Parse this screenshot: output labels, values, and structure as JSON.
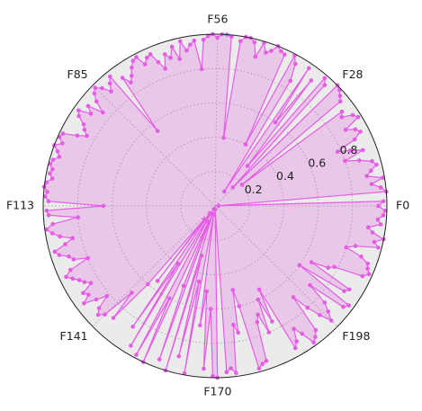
{
  "chart_data": {
    "type": "radar",
    "categories": [
      "F0",
      null,
      null,
      null,
      null,
      null,
      null,
      null,
      null,
      null,
      null,
      null,
      null,
      null,
      null,
      null,
      null,
      null,
      null,
      null,
      null,
      null,
      null,
      null,
      null,
      null,
      null,
      null,
      "F28",
      null,
      null,
      null,
      null,
      null,
      null,
      null,
      null,
      null,
      null,
      null,
      null,
      null,
      null,
      null,
      null,
      null,
      null,
      null,
      null,
      null,
      null,
      null,
      null,
      null,
      null,
      null,
      "F56",
      null,
      null,
      null,
      null,
      null,
      null,
      null,
      null,
      null,
      null,
      null,
      null,
      null,
      null,
      null,
      null,
      null,
      null,
      null,
      null,
      null,
      null,
      null,
      null,
      null,
      null,
      null,
      null,
      "F85",
      null,
      null,
      null,
      null,
      null,
      null,
      null,
      null,
      null,
      null,
      null,
      null,
      null,
      null,
      null,
      null,
      null,
      null,
      null,
      null,
      null,
      null,
      null,
      null,
      null,
      null,
      null,
      "F113",
      null,
      null,
      null,
      null,
      null,
      null,
      null,
      null,
      null,
      null,
      null,
      null,
      null,
      null,
      null,
      null,
      null,
      null,
      null,
      null,
      null,
      null,
      null,
      null,
      null,
      null,
      null,
      "F141",
      null,
      null,
      null,
      null,
      null,
      null,
      null,
      null,
      null,
      null,
      null,
      null,
      null,
      null,
      null,
      null,
      null,
      null,
      null,
      null,
      null,
      null,
      null,
      null,
      null,
      null,
      null,
      null,
      "F170",
      null,
      null,
      null,
      null,
      null,
      null,
      null,
      null,
      null,
      null,
      null,
      null,
      null,
      null,
      null,
      null,
      null,
      null,
      null,
      null,
      null,
      null,
      null,
      null,
      null,
      null,
      null,
      "F198",
      null,
      null,
      null,
      null,
      null,
      null,
      null,
      null,
      null,
      null,
      null,
      null,
      null,
      null,
      null,
      null,
      null,
      null,
      null,
      null,
      null,
      null,
      null,
      null,
      null,
      null,
      null
    ],
    "values": [
      0.95,
      0.98,
      0.02,
      1.0,
      0.97,
      0.92,
      0.99,
      0.9,
      0.93,
      0.97,
      0.95,
      0.88,
      0.8,
      0.92,
      0.85,
      0.78,
      0.9,
      0.95,
      0.93,
      0.88,
      0.98,
      0.96,
      0.9,
      0.92,
      0.2,
      0.95,
      0.97,
      0.99,
      1.0,
      0.15,
      0.95,
      0.98,
      0.3,
      0.92,
      0.6,
      0.97,
      0.1,
      0.85,
      0.95,
      0.99,
      0.4,
      0.97,
      0.98,
      1.0,
      0.96,
      0.94,
      0.99,
      0.9,
      0.98,
      1.0,
      1.0,
      0.97,
      0.4,
      0.99,
      1.0,
      1.0,
      0.98,
      1.0,
      0.99,
      0.97,
      0.8,
      0.97,
      0.95,
      0.92,
      0.98,
      0.88,
      0.96,
      0.9,
      0.93,
      0.85,
      0.9,
      0.96,
      0.95,
      0.92,
      0.98,
      0.97,
      0.94,
      0.9,
      0.87,
      0.92,
      0.55,
      0.97,
      0.94,
      0.9,
      0.95,
      0.98,
      0.96,
      0.92,
      0.85,
      0.94,
      0.9,
      0.97,
      0.95,
      0.9,
      0.88,
      0.85,
      0.9,
      0.98,
      0.99,
      0.96,
      1.0,
      0.97,
      0.95,
      0.98,
      0.99,
      0.97,
      0.98,
      0.96,
      0.99,
      1.0,
      0.98,
      0.99,
      0.97,
      0.65,
      0.98,
      0.97,
      0.8,
      0.95,
      0.99,
      0.96,
      0.92,
      0.85,
      0.9,
      0.97,
      0.95,
      0.9,
      0.88,
      0.8,
      0.92,
      0.96,
      0.93,
      0.9,
      0.88,
      0.85,
      0.92,
      0.9,
      0.95,
      0.88,
      0.82,
      0.9,
      0.93,
      0.9,
      0.7,
      0.88,
      0.6,
      0.1,
      0.55,
      0.05,
      0.85,
      0.4,
      0.95,
      0.05,
      0.98,
      0.6,
      1.0,
      0.1,
      0.5,
      0.95,
      0.02,
      1.0,
      0.3,
      0.9,
      0.45,
      0.99,
      0.05,
      0.7,
      0.5,
      0.95,
      0.6,
      0.99,
      1.0,
      0.02,
      0.97,
      0.95,
      0.98,
      0.7,
      0.75,
      0.5,
      0.6,
      0.98,
      0.96,
      0.95,
      0.72,
      0.68,
      0.8,
      0.6,
      0.75,
      0.55,
      0.95,
      0.92,
      0.85,
      0.9,
      0.98,
      0.96,
      0.93,
      0.7,
      0.8,
      0.88,
      0.95,
      0.9,
      0.85,
      0.72,
      0.95,
      0.97,
      0.6,
      0.9,
      0.92,
      0.65,
      0.75,
      0.78,
      0.95,
      0.98,
      0.96,
      0.95,
      0.9,
      0.8,
      0.85,
      0.98,
      0.95,
      1.0,
      0.93,
      0.9,
      0.97,
      0.95,
      0.98,
      0.99
    ],
    "color": "#e55ce5",
    "rlim": [
      0,
      1
    ],
    "rticks": [
      0.2,
      0.4,
      0.6,
      0.8
    ],
    "grid": true
  }
}
